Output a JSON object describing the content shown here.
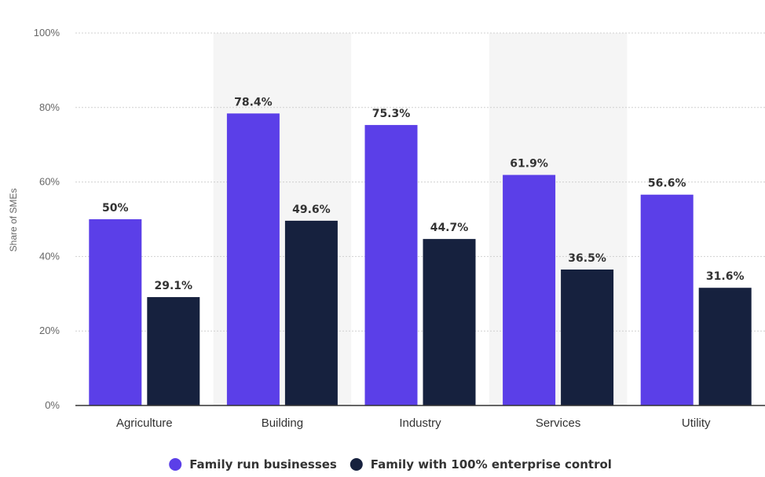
{
  "chart_data": {
    "type": "bar",
    "title": "",
    "xlabel": "",
    "ylabel": "Share of SMEs",
    "ylim": [
      0,
      100
    ],
    "yticks": [
      "0%",
      "20%",
      "40%",
      "60%",
      "80%",
      "100%"
    ],
    "ytick_values": [
      0,
      20,
      40,
      60,
      80,
      100
    ],
    "categories": [
      "Agriculture",
      "Building",
      "Industry",
      "Services",
      "Utility"
    ],
    "series": [
      {
        "name": "Family run businesses",
        "color": "#5b3fe8",
        "values": [
          50,
          78.4,
          75.3,
          61.9,
          56.6
        ],
        "labels": [
          "50%",
          "78.4%",
          "75.3%",
          "61.9%",
          "56.6%"
        ]
      },
      {
        "name": "Family with 100% enterprise control",
        "color": "#16213e",
        "values": [
          29.1,
          49.6,
          44.7,
          36.5,
          31.6
        ],
        "labels": [
          "29.1%",
          "49.6%",
          "44.7%",
          "36.5%",
          "31.6%"
        ]
      }
    ],
    "grid": true,
    "legend": "bottom-center"
  }
}
